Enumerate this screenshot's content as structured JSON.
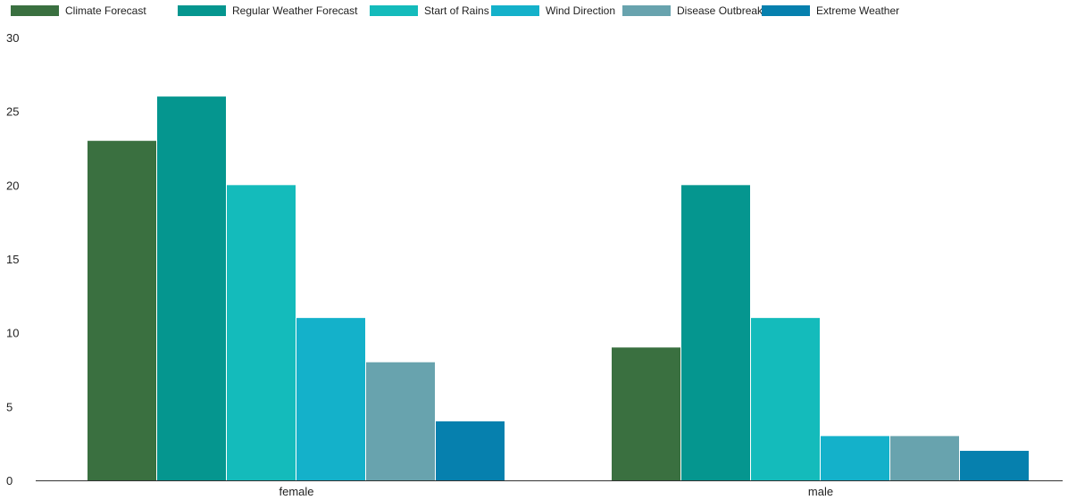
{
  "chart_data": {
    "type": "bar",
    "categories": [
      "female",
      "male"
    ],
    "series": [
      {
        "name": "Climate Forecast",
        "values": [
          23,
          9
        ],
        "color": "#3a7040"
      },
      {
        "name": "Regular Weather Forecast",
        "values": [
          26,
          20
        ],
        "color": "#05968f"
      },
      {
        "name": "Start of Rains",
        "values": [
          20,
          11
        ],
        "color": "#14bbbb"
      },
      {
        "name": "Wind Direction",
        "values": [
          11,
          3
        ],
        "color": "#14b1ca"
      },
      {
        "name": "Disease Outbreak",
        "values": [
          8,
          3
        ],
        "color": "#68a3ae"
      },
      {
        "name": "Extreme Weather",
        "values": [
          4,
          2
        ],
        "color": "#0680ae"
      }
    ],
    "y_ticks": [
      0,
      5,
      10,
      15,
      20,
      25,
      30
    ],
    "ylim": [
      0,
      30
    ],
    "grid": false,
    "legend_position": "top-left"
  }
}
